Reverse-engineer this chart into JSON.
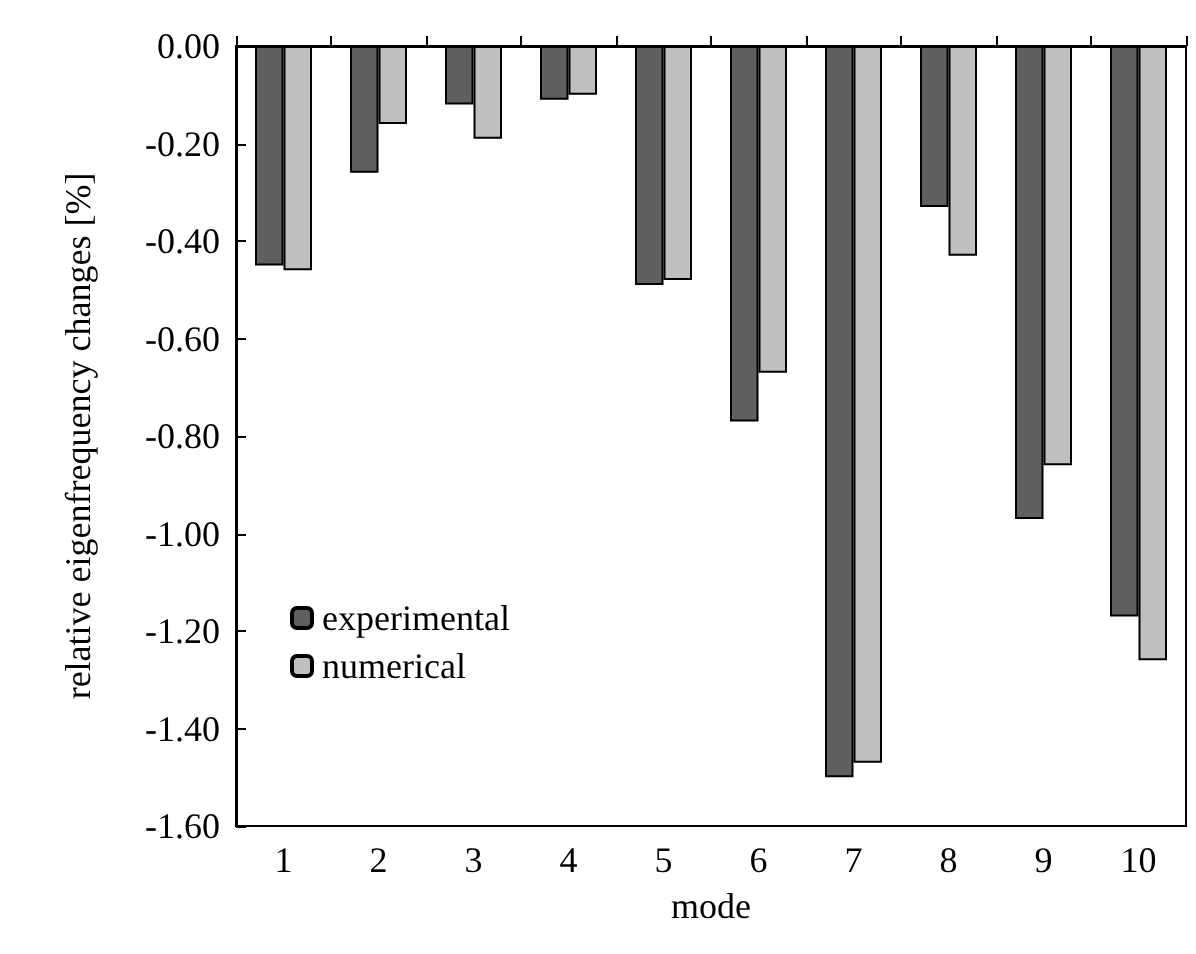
{
  "chart_data": {
    "type": "bar",
    "xlabel": "mode",
    "ylabel": "relative eigenfrequency changes [%]",
    "categories": [
      "1",
      "2",
      "3",
      "4",
      "5",
      "6",
      "7",
      "8",
      "9",
      "10"
    ],
    "series": [
      {
        "name": "experimental",
        "color": "#5f5f5f",
        "values": [
          -0.45,
          -0.26,
          -0.12,
          -0.11,
          -0.49,
          -0.77,
          -1.5,
          -0.33,
          -0.97,
          -1.17
        ]
      },
      {
        "name": "numerical",
        "color": "#bfbfbf",
        "values": [
          -0.46,
          -0.16,
          -0.19,
          -0.1,
          -0.48,
          -0.67,
          -1.47,
          -0.43,
          -0.86,
          -1.26
        ]
      }
    ],
    "ylim": [
      -1.6,
      0
    ],
    "yticks": [
      {
        "value": -1.6,
        "label": "-1.60"
      },
      {
        "value": -1.4,
        "label": "-1.40"
      },
      {
        "value": -1.2,
        "label": "-1.20"
      },
      {
        "value": -1.0,
        "label": "-1.00"
      },
      {
        "value": -0.8,
        "label": "-0.80"
      },
      {
        "value": -0.6,
        "label": "-0.60"
      },
      {
        "value": -0.4,
        "label": "-0.40"
      },
      {
        "value": -0.2,
        "label": "-0.20"
      },
      {
        "value": 0,
        "label": "0.00"
      }
    ],
    "grid": false,
    "legend": "bottom left"
  }
}
